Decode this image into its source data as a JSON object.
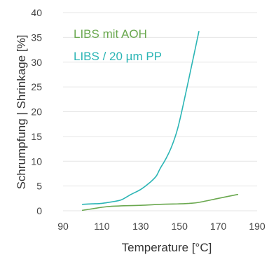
{
  "chart_data": {
    "type": "line",
    "xlabel": "Temperature [°C]",
    "ylabel": "Schrumpfung  |  Shrinkage [%]",
    "xlim": [
      90,
      190
    ],
    "ylim": [
      0,
      40
    ],
    "xticks": [
      90,
      110,
      130,
      150,
      170,
      190
    ],
    "yticks": [
      0,
      5,
      10,
      15,
      20,
      25,
      30,
      35,
      40
    ],
    "grid": "horizontal",
    "legend_placement": "top-left",
    "series": [
      {
        "name": "LIBS mit AOH",
        "color": "#6aa84f",
        "x": [
          100,
          105,
          110,
          115,
          120,
          130,
          140,
          150,
          155,
          160,
          170,
          180
        ],
        "y": [
          0.1,
          0.4,
          0.7,
          0.9,
          1.0,
          1.1,
          1.3,
          1.4,
          1.5,
          1.7,
          2.5,
          3.3
        ]
      },
      {
        "name": "LIBS / 20 µm PP",
        "color": "#2bb5b5",
        "x": [
          100,
          105,
          110,
          115,
          120,
          125,
          130,
          135,
          138,
          140,
          143,
          146,
          149,
          152,
          155,
          158,
          160
        ],
        "y": [
          1.3,
          1.4,
          1.5,
          1.8,
          2.2,
          3.3,
          4.3,
          5.8,
          7.0,
          8.5,
          10.5,
          13.0,
          16.5,
          21.5,
          27.0,
          32.5,
          36.2
        ]
      }
    ]
  }
}
